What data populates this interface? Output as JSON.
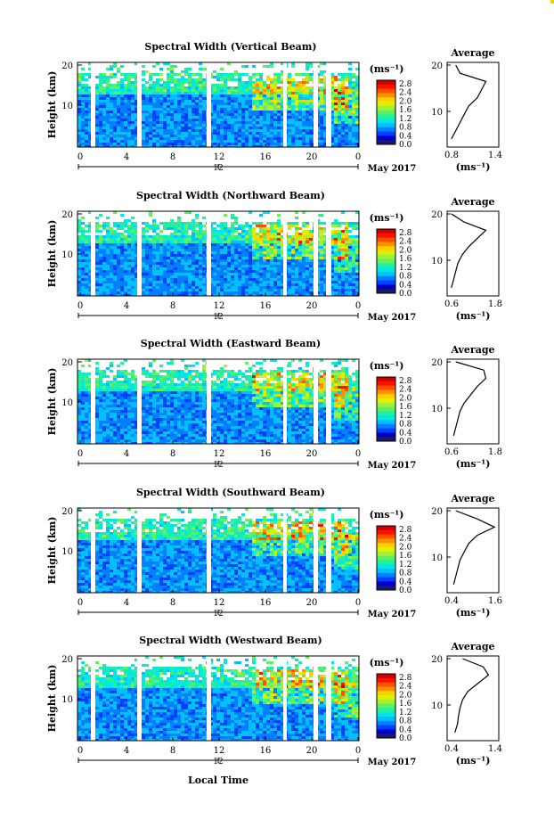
{
  "figure": {
    "date_label": "May 2017",
    "xlabel": "Local Time",
    "units_label": "(ms⁻¹)",
    "corner_color": "#f4d000"
  },
  "colorbar": {
    "ticks": [
      "2.8",
      "2.4",
      "2.0",
      "1.6",
      "1.2",
      "0.8",
      "0.4",
      "0.0"
    ],
    "colors": [
      "#1a1a66",
      "#0000c8",
      "#0040ff",
      "#0080ff",
      "#00c0ff",
      "#00e8e0",
      "#20f0a0",
      "#60f060",
      "#a0f040",
      "#e0f000",
      "#ffd000",
      "#ff9000",
      "#ff5000",
      "#ff1000",
      "#d00000"
    ]
  },
  "chart_data": [
    {
      "type": "heatmap",
      "title": "Spectral Width (Vertical Beam)",
      "ylabel": "Height (km)",
      "x_ticks": [
        "0",
        "4",
        "8",
        "12",
        "16",
        "20",
        "0"
      ],
      "sub_tick": "12",
      "y_ticks": [
        "20",
        "10"
      ],
      "avg_title": "Average",
      "avg_xticks": [
        "0.8",
        "1.4"
      ],
      "avg_xlabel": "(ms⁻¹)",
      "avg_yticks": [
        "20",
        "10"
      ],
      "avg_range": [
        0.8,
        1.4
      ],
      "avg_heights": [
        2,
        4,
        6,
        8,
        10,
        12,
        14,
        16,
        18,
        20
      ],
      "avg_values": [
        0.85,
        0.9,
        0.95,
        1.0,
        1.05,
        1.15,
        1.2,
        1.25,
        0.95,
        0.9
      ]
    },
    {
      "type": "heatmap",
      "title": "Spectral Width (Northward Beam)",
      "ylabel": "Height (km)",
      "x_ticks": [
        "0",
        "4",
        "8",
        "12",
        "16",
        "20",
        "0"
      ],
      "sub_tick": "12",
      "y_ticks": [
        "20",
        "10"
      ],
      "avg_title": "Average",
      "avg_xticks": [
        "0.6",
        "1.8"
      ],
      "avg_xlabel": "(ms⁻¹)",
      "avg_yticks": [
        "20",
        "10"
      ],
      "avg_range": [
        0.6,
        1.8
      ],
      "avg_heights": [
        2,
        4,
        6,
        8,
        10,
        12,
        14,
        16,
        18,
        20
      ],
      "avg_values": [
        0.7,
        0.75,
        0.8,
        0.85,
        0.95,
        1.1,
        1.3,
        1.5,
        1.0,
        0.7
      ]
    },
    {
      "type": "heatmap",
      "title": "Spectral Width (Eastward Beam)",
      "ylabel": "Height (km)",
      "x_ticks": [
        "0",
        "4",
        "8",
        "12",
        "16",
        "20",
        "0"
      ],
      "sub_tick": "12",
      "y_ticks": [
        "20",
        "10"
      ],
      "avg_title": "Average",
      "avg_xticks": [
        "0.6",
        "1.8"
      ],
      "avg_xlabel": "(ms⁻¹)",
      "avg_yticks": [
        "20",
        "10"
      ],
      "avg_range": [
        0.6,
        1.8
      ],
      "avg_heights": [
        2,
        4,
        6,
        8,
        10,
        12,
        14,
        16,
        18,
        20
      ],
      "avg_values": [
        0.75,
        0.8,
        0.85,
        0.9,
        1.0,
        1.15,
        1.3,
        1.5,
        1.45,
        0.8
      ]
    },
    {
      "type": "heatmap",
      "title": "Spectral Width (Southward Beam)",
      "ylabel": "Height (km)",
      "x_ticks": [
        "0",
        "4",
        "8",
        "12",
        "16",
        "20",
        "0"
      ],
      "sub_tick": "12",
      "y_ticks": [
        "20",
        "10"
      ],
      "avg_title": "Average",
      "avg_xticks": [
        "0.4",
        "1.6"
      ],
      "avg_xlabel": "(ms⁻¹)",
      "avg_yticks": [
        "20",
        "10"
      ],
      "avg_range": [
        0.4,
        1.6
      ],
      "avg_heights": [
        2,
        4,
        6,
        8,
        10,
        12,
        14,
        16,
        18,
        20
      ],
      "avg_values": [
        0.55,
        0.6,
        0.65,
        0.7,
        0.8,
        0.9,
        1.1,
        1.5,
        1.1,
        0.6
      ]
    },
    {
      "type": "heatmap",
      "title": "Spectral Width (Westward Beam)",
      "ylabel": "Height (km)",
      "x_ticks": [
        "0",
        "4",
        "8",
        "12",
        "16",
        "20",
        "0"
      ],
      "sub_tick": "12",
      "y_ticks": [
        "20",
        "10"
      ],
      "avg_title": "Average",
      "avg_xticks": [
        "0.4",
        "1.4"
      ],
      "avg_xlabel": "(ms⁻¹)",
      "avg_yticks": [
        "20",
        "10"
      ],
      "avg_range": [
        0.4,
        1.4
      ],
      "avg_heights": [
        2,
        4,
        6,
        8,
        10,
        12,
        14,
        16,
        18,
        20
      ],
      "avg_values": [
        0.55,
        0.6,
        0.62,
        0.65,
        0.7,
        0.8,
        1.0,
        1.2,
        1.1,
        0.7
      ]
    }
  ]
}
